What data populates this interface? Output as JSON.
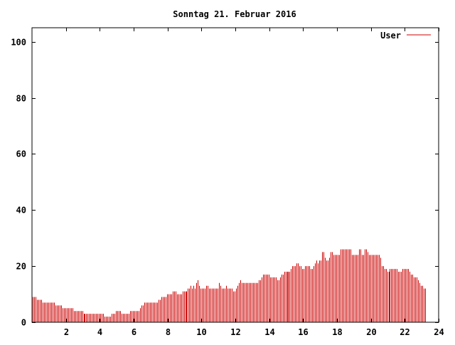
{
  "chart_data": {
    "type": "bar",
    "title": "Sonntag 21. Februar 2016",
    "xlabel": "",
    "ylabel": "",
    "xlim": [
      0,
      24
    ],
    "ylim": [
      0,
      105
    ],
    "x_ticks": [
      2,
      4,
      6,
      8,
      10,
      12,
      14,
      16,
      18,
      20,
      22,
      24
    ],
    "y_ticks": [
      0,
      20,
      40,
      60,
      80,
      100
    ],
    "grid": false,
    "legend_position": "top-right",
    "bar_color": "#cc0000",
    "interval_minutes": 5,
    "series": [
      {
        "name": "User",
        "color": "#cc0000",
        "values": [
          9,
          9,
          9,
          8,
          8,
          8,
          8,
          7,
          7,
          7,
          7,
          7,
          7,
          7,
          7,
          7,
          6,
          6,
          6,
          6,
          6,
          5,
          5,
          5,
          5,
          5,
          5,
          5,
          5,
          4,
          4,
          4,
          4,
          4,
          4,
          4,
          3,
          3,
          3,
          3,
          3,
          3,
          3,
          3,
          3,
          3,
          3,
          3,
          3,
          3,
          3,
          2,
          2,
          2,
          2,
          2,
          3,
          3,
          3,
          4,
          4,
          4,
          4,
          3,
          3,
          3,
          3,
          3,
          3,
          4,
          4,
          4,
          4,
          4,
          4,
          4,
          5,
          6,
          6,
          7,
          7,
          7,
          7,
          7,
          7,
          7,
          7,
          7,
          7,
          8,
          8,
          9,
          9,
          9,
          9,
          10,
          10,
          10,
          10,
          11,
          11,
          11,
          10,
          10,
          10,
          10,
          11,
          11,
          11,
          11,
          12,
          12,
          13,
          12,
          13,
          12,
          14,
          15,
          13,
          12,
          12,
          12,
          12,
          13,
          13,
          12,
          12,
          12,
          12,
          12,
          12,
          12,
          14,
          13,
          12,
          12,
          12,
          13,
          12,
          12,
          12,
          12,
          11,
          11,
          12,
          13,
          14,
          15,
          14,
          14,
          14,
          14,
          14,
          14,
          14,
          14,
          14,
          14,
          14,
          14,
          15,
          15,
          16,
          17,
          17,
          17,
          17,
          17,
          16,
          16,
          16,
          16,
          16,
          15,
          15,
          16,
          17,
          17,
          18,
          18,
          18,
          18,
          18,
          19,
          20,
          20,
          20,
          21,
          21,
          20,
          20,
          19,
          19,
          20,
          20,
          20,
          20,
          19,
          19,
          20,
          21,
          22,
          21,
          22,
          22,
          25,
          25,
          23,
          22,
          22,
          23,
          25,
          25,
          24,
          24,
          24,
          24,
          24,
          26,
          26,
          26,
          26,
          26,
          26,
          26,
          26,
          24,
          24,
          24,
          24,
          24,
          26,
          26,
          24,
          24,
          26,
          26,
          25,
          24,
          24,
          24,
          24,
          24,
          24,
          24,
          24,
          23,
          20,
          20,
          19,
          19,
          18,
          18,
          19,
          19,
          19,
          19,
          19,
          19,
          18,
          18,
          18,
          19,
          19,
          19,
          19,
          19,
          18,
          17,
          17,
          16,
          16,
          16,
          15,
          14,
          13,
          13,
          12,
          12
        ]
      }
    ]
  }
}
